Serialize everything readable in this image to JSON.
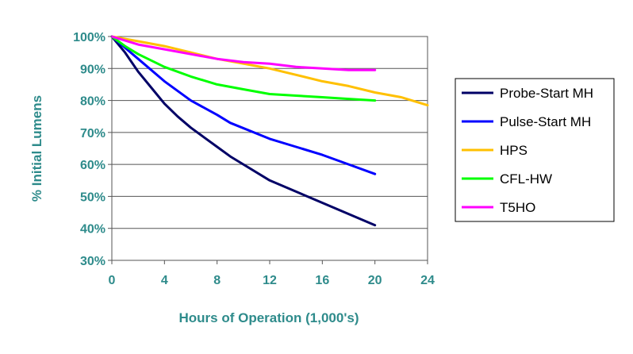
{
  "chart_data": {
    "type": "line",
    "title": "",
    "xlabel": "Hours of Operation (1,000's)",
    "ylabel": "% Initial Lumens",
    "xlim": [
      0,
      24
    ],
    "ylim": [
      30,
      100
    ],
    "x_ticks": [
      0,
      4,
      8,
      12,
      16,
      20,
      24
    ],
    "y_ticks": [
      30,
      40,
      50,
      60,
      70,
      80,
      90,
      100
    ],
    "y_tick_labels": [
      "30%",
      "40%",
      "50%",
      "60%",
      "70%",
      "80%",
      "90%",
      "100%"
    ],
    "grid": "horizontal",
    "legend_position": "right",
    "series": [
      {
        "name": "Probe-Start MH",
        "color": "#000066",
        "points": [
          [
            0,
            100
          ],
          [
            1,
            95
          ],
          [
            2,
            89
          ],
          [
            3,
            84
          ],
          [
            4,
            79
          ],
          [
            5,
            75
          ],
          [
            6,
            71.5
          ],
          [
            7,
            68.5
          ],
          [
            8,
            65.5
          ],
          [
            9,
            62.5
          ],
          [
            10,
            60
          ],
          [
            12,
            55
          ],
          [
            14,
            51.5
          ],
          [
            16,
            48
          ],
          [
            18,
            44.5
          ],
          [
            20,
            41
          ]
        ]
      },
      {
        "name": "Pulse-Start MH",
        "color": "#0000ff",
        "points": [
          [
            0,
            100
          ],
          [
            1,
            96.5
          ],
          [
            2,
            93
          ],
          [
            4,
            86
          ],
          [
            6,
            80
          ],
          [
            8,
            75.5
          ],
          [
            9,
            73
          ],
          [
            12,
            68
          ],
          [
            14,
            65.5
          ],
          [
            16,
            63
          ],
          [
            18,
            60
          ],
          [
            20,
            57
          ]
        ]
      },
      {
        "name": "HPS",
        "color": "#ffc000",
        "points": [
          [
            0,
            100
          ],
          [
            2,
            98.5
          ],
          [
            4,
            97
          ],
          [
            6,
            95
          ],
          [
            8,
            93
          ],
          [
            10,
            91.5
          ],
          [
            12,
            90
          ],
          [
            14,
            88
          ],
          [
            16,
            86
          ],
          [
            18,
            84.5
          ],
          [
            20,
            82.5
          ],
          [
            22,
            81
          ],
          [
            24,
            78.5
          ]
        ]
      },
      {
        "name": "CFL-HW",
        "color": "#00ff00",
        "points": [
          [
            0,
            100
          ],
          [
            1,
            97
          ],
          [
            2,
            94.5
          ],
          [
            4,
            90.5
          ],
          [
            6,
            87.5
          ],
          [
            8,
            85
          ],
          [
            10,
            83.5
          ],
          [
            12,
            82
          ],
          [
            14,
            81.5
          ],
          [
            16,
            81
          ],
          [
            18,
            80.5
          ],
          [
            20,
            80
          ]
        ]
      },
      {
        "name": "T5HO",
        "color": "#ff00ff",
        "points": [
          [
            0,
            100
          ],
          [
            2,
            97.5
          ],
          [
            4,
            96
          ],
          [
            6,
            94.5
          ],
          [
            8,
            93
          ],
          [
            10,
            92
          ],
          [
            12,
            91.5
          ],
          [
            14,
            90.5
          ],
          [
            16,
            90
          ],
          [
            18,
            89.5
          ],
          [
            20,
            89.5
          ]
        ]
      }
    ]
  }
}
